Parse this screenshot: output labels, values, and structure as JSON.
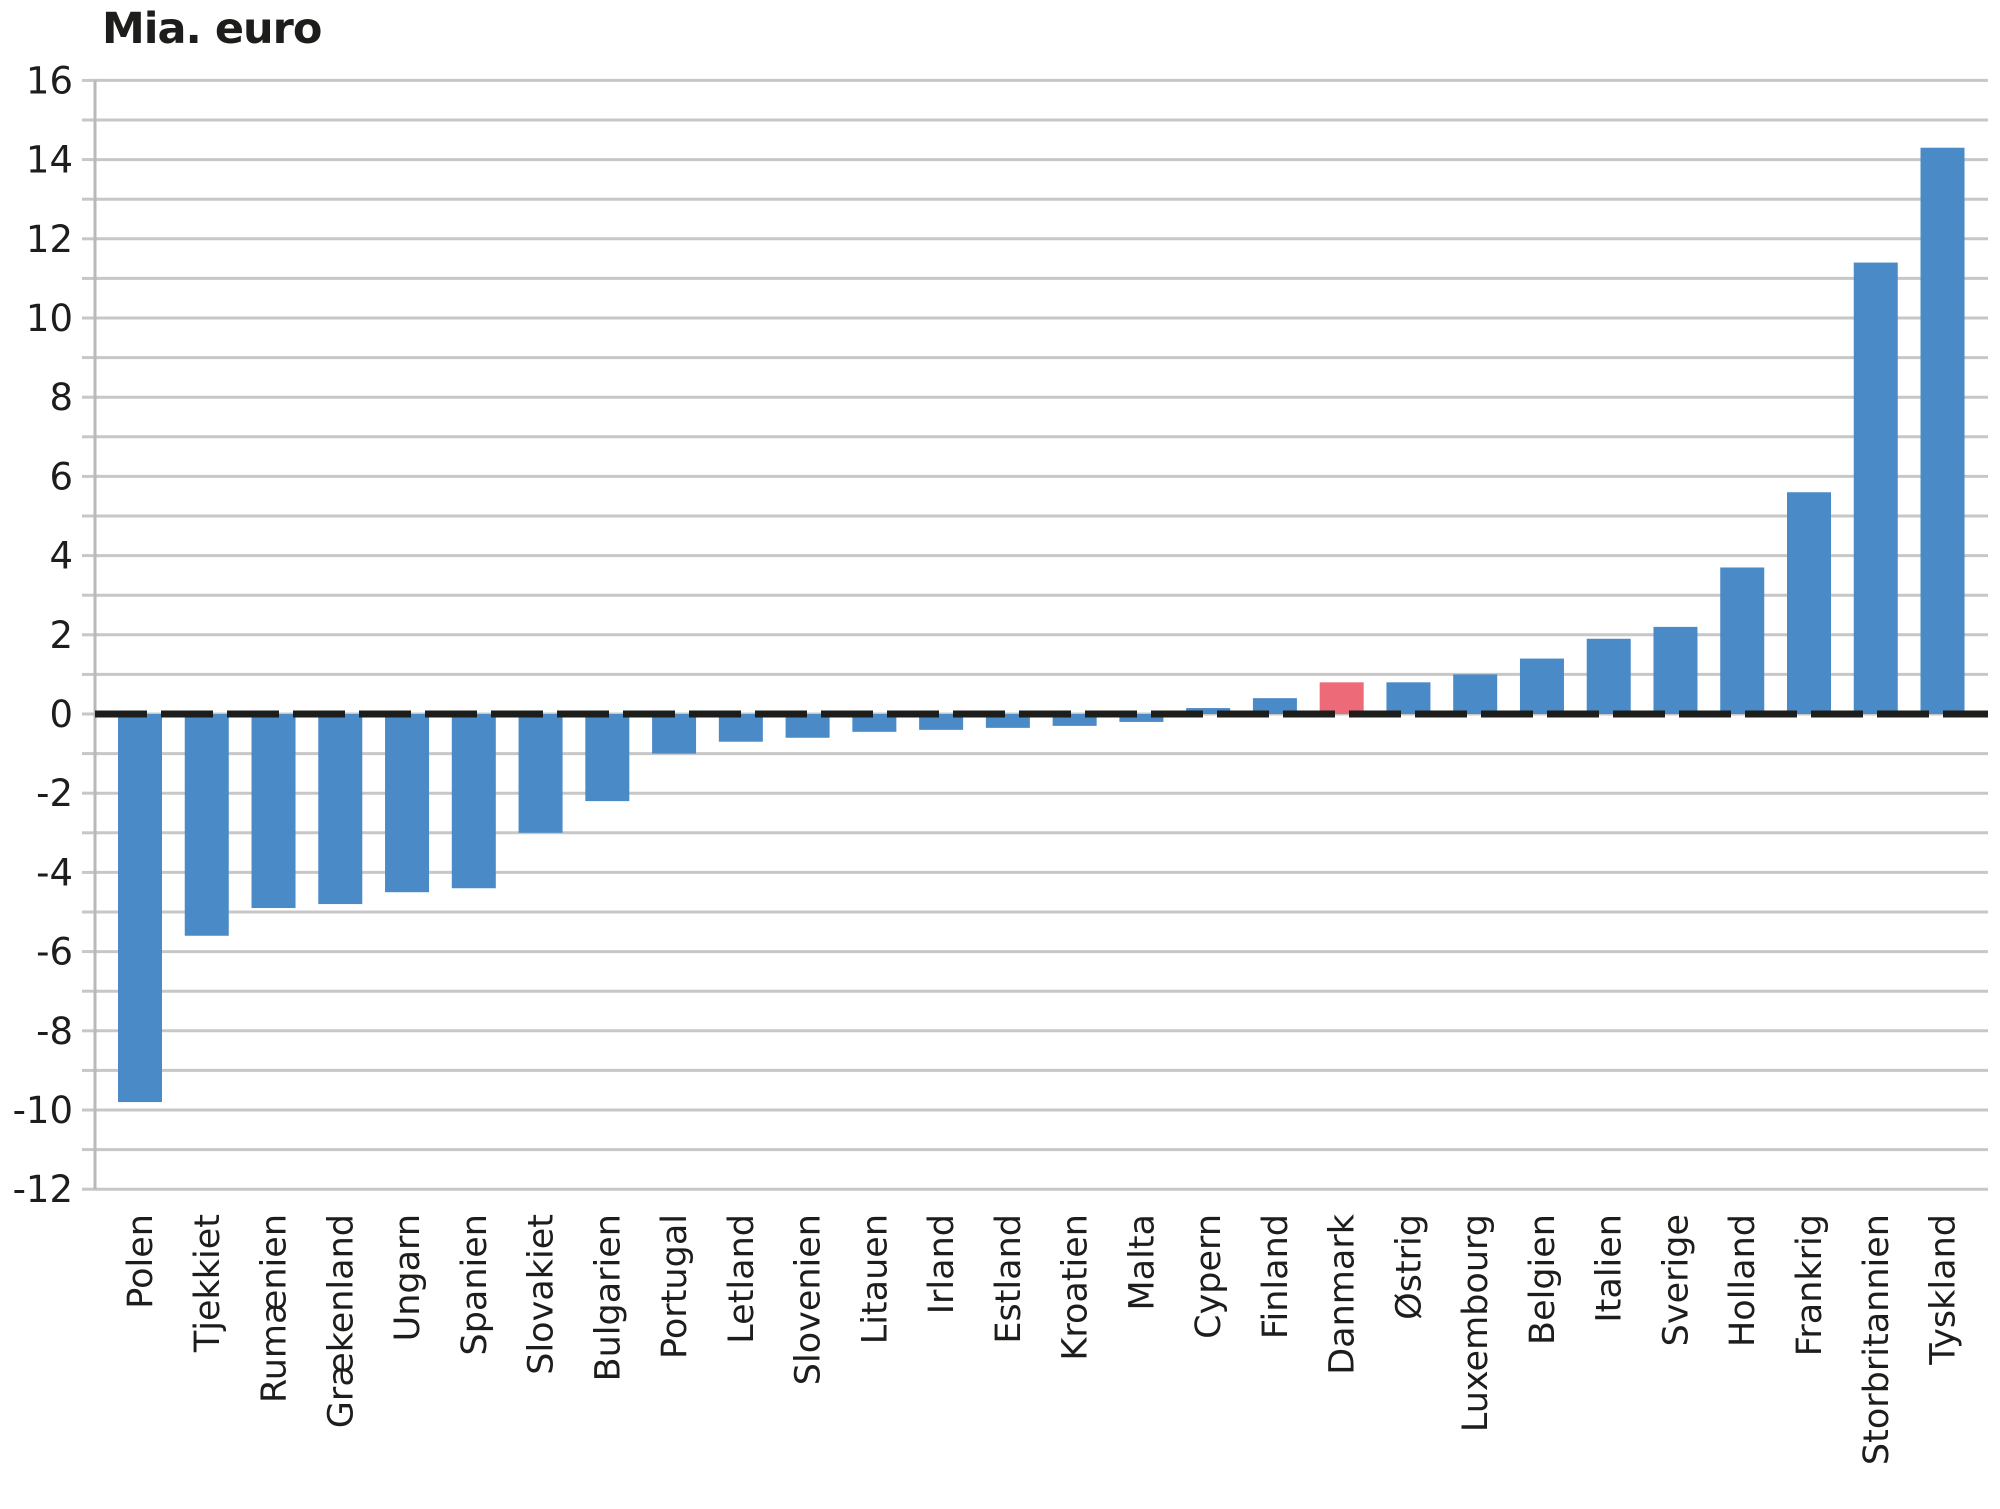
{
  "chart_data": {
    "type": "bar",
    "title": "Mia. euro",
    "xlabel": "",
    "ylabel": "Mia. euro",
    "categories": [
      "Polen",
      "Tjekkiet",
      "Rumænien",
      "Grækenland",
      "Ungarn",
      "Spanien",
      "Slovakiet",
      "Bulgarien",
      "Portugal",
      "Letland",
      "Slovenien",
      "Litauen",
      "Irland",
      "Estland",
      "Kroatien",
      "Malta",
      "Cypern",
      "Finland",
      "Danmark",
      "Østrig",
      "Luxembourg",
      "Belgien",
      "Italien",
      "Sverige",
      "Holland",
      "Frankrig",
      "Storbritannien",
      "Tyskland"
    ],
    "values": [
      -9.8,
      -5.6,
      -4.9,
      -4.8,
      -4.5,
      -4.4,
      -3.0,
      -2.2,
      -1.0,
      -0.7,
      -0.6,
      -0.45,
      -0.4,
      -0.35,
      -0.3,
      -0.2,
      0.15,
      0.4,
      0.8,
      0.8,
      1.0,
      1.4,
      1.9,
      2.2,
      3.7,
      5.6,
      11.4,
      14.3
    ],
    "highlight_category": "Danmark",
    "ylim": [
      -12,
      16
    ],
    "yticks": [
      16,
      14,
      12,
      10,
      8,
      6,
      4,
      2,
      0,
      -2,
      -4,
      -6,
      -8,
      -10,
      -12
    ],
    "ygrid_step": 1,
    "grid": true,
    "legend_position": "none"
  },
  "colors": {
    "bar": "#4a8ac6",
    "highlight_bar": "#ed6b79",
    "gridline": "#c7c7c7",
    "axis_line": "#b9b9b9",
    "zero_line": "#1d1d1b",
    "text": "#1d1d1b",
    "background": "#ffffff"
  }
}
